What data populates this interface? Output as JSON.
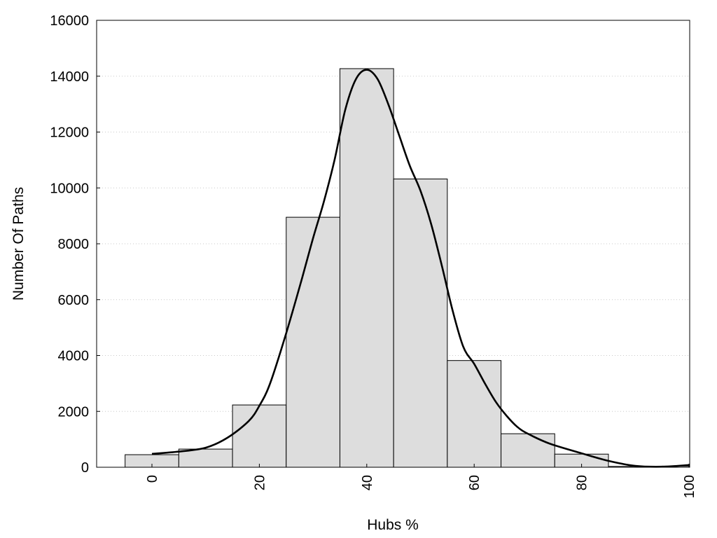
{
  "chart_data": {
    "type": "bar",
    "title": "",
    "xlabel": "Hubs %",
    "ylabel": "Number Of Paths",
    "xlim": [
      -10,
      100
    ],
    "ylim": [
      0,
      16000
    ],
    "x_ticks": [
      0,
      20,
      40,
      60,
      80,
      100
    ],
    "y_ticks": [
      0,
      2000,
      4000,
      6000,
      8000,
      10000,
      12000,
      14000,
      16000
    ],
    "grid": "horizontal dotted",
    "bin_width": 10,
    "bins": [
      {
        "center": 0,
        "count": 450
      },
      {
        "center": 10,
        "count": 650
      },
      {
        "center": 20,
        "count": 2230
      },
      {
        "center": 30,
        "count": 8950
      },
      {
        "center": 40,
        "count": 14270
      },
      {
        "center": 50,
        "count": 10320
      },
      {
        "center": 60,
        "count": 3820
      },
      {
        "center": 70,
        "count": 1200
      },
      {
        "center": 80,
        "count": 470
      },
      {
        "center": 90,
        "count": 30
      },
      {
        "center": 100,
        "count": 40
      }
    ],
    "density_curve": {
      "x": [
        0,
        5,
        10,
        14,
        18,
        20,
        22,
        25,
        28,
        30,
        32,
        34,
        36,
        38,
        40,
        42,
        44,
        46,
        48,
        50,
        52,
        54,
        56,
        58,
        60,
        62,
        64,
        66,
        68,
        70,
        74,
        80,
        85,
        90,
        95,
        100
      ],
      "y": [
        480,
        560,
        700,
        1050,
        1650,
        2200,
        3000,
        4800,
        6800,
        8200,
        9500,
        11000,
        12800,
        13900,
        14230,
        13900,
        13000,
        11900,
        10800,
        9900,
        8700,
        7200,
        5600,
        4300,
        3700,
        3000,
        2350,
        1850,
        1450,
        1200,
        850,
        500,
        230,
        50,
        20,
        80
      ]
    }
  }
}
